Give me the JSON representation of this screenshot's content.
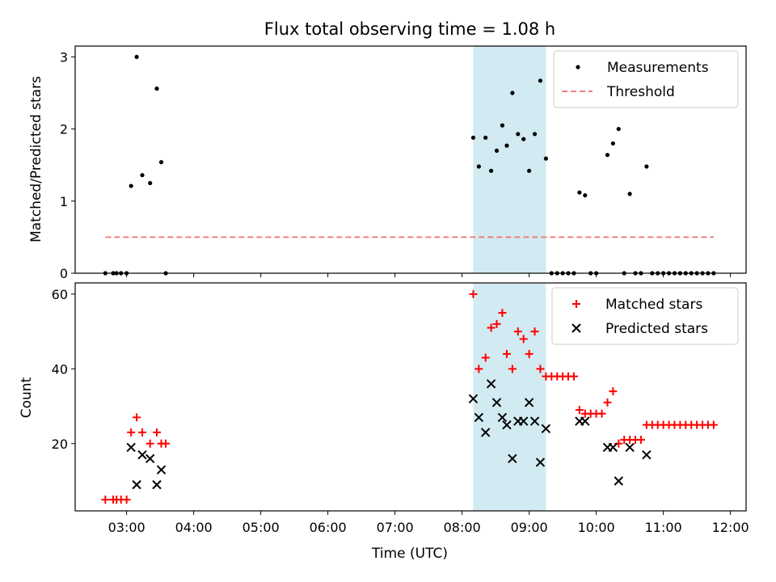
{
  "colors": {
    "band": "#add8e6",
    "threshold": "#f08080",
    "matched": "#ff0000",
    "predicted": "#000000",
    "measurement": "#000000"
  },
  "chart_data": [
    {
      "type": "scatter",
      "title": "Flux total observing time = 1.08 h",
      "xlabel": "",
      "ylabel": "Matched/Predicted stars",
      "xlim": [
        "02:14",
        "12:14"
      ],
      "ylim": [
        0,
        3.15
      ],
      "yticks": [
        "0",
        "1",
        "2",
        "3"
      ],
      "shaded_interval": [
        "08:10",
        "09:15"
      ],
      "legend_position": "top-right",
      "legend": [
        "Measurements",
        "Threshold"
      ],
      "series": [
        {
          "name": "Measurements",
          "points": [
            [
              "02:41",
              0
            ],
            [
              "02:48",
              0
            ],
            [
              "02:51",
              0
            ],
            [
              "02:55",
              0
            ],
            [
              "03:00",
              0
            ],
            [
              "03:04",
              1.21
            ],
            [
              "03:09",
              3.0
            ],
            [
              "03:14",
              1.36
            ],
            [
              "03:21",
              1.25
            ],
            [
              "03:27",
              2.56
            ],
            [
              "03:31",
              1.54
            ],
            [
              "03:35",
              0
            ],
            [
              "08:10",
              1.88
            ],
            [
              "08:15",
              1.48
            ],
            [
              "08:21",
              1.88
            ],
            [
              "08:26",
              1.42
            ],
            [
              "08:31",
              1.7
            ],
            [
              "08:36",
              2.05
            ],
            [
              "08:40",
              1.77
            ],
            [
              "08:45",
              2.5
            ],
            [
              "08:50",
              1.93
            ],
            [
              "08:55",
              1.86
            ],
            [
              "09:00",
              1.42
            ],
            [
              "09:05",
              1.93
            ],
            [
              "09:10",
              2.67
            ],
            [
              "09:15",
              1.59
            ],
            [
              "09:20",
              0
            ],
            [
              "09:25",
              0
            ],
            [
              "09:30",
              0
            ],
            [
              "09:35",
              0
            ],
            [
              "09:40",
              0
            ],
            [
              "09:45",
              1.12
            ],
            [
              "09:50",
              1.08
            ],
            [
              "09:55",
              0
            ],
            [
              "10:00",
              0
            ],
            [
              "10:10",
              1.64
            ],
            [
              "10:15",
              1.8
            ],
            [
              "10:20",
              2.0
            ],
            [
              "10:25",
              0
            ],
            [
              "10:30",
              1.1
            ],
            [
              "10:35",
              0
            ],
            [
              "10:40",
              0
            ],
            [
              "10:45",
              1.48
            ],
            [
              "10:50",
              0
            ],
            [
              "10:55",
              0
            ],
            [
              "11:00",
              0
            ],
            [
              "11:05",
              0
            ],
            [
              "11:10",
              0
            ],
            [
              "11:15",
              0
            ],
            [
              "11:20",
              0
            ],
            [
              "11:25",
              0
            ],
            [
              "11:30",
              0
            ],
            [
              "11:35",
              0
            ],
            [
              "11:40",
              0
            ],
            [
              "11:45",
              0
            ]
          ]
        },
        {
          "name": "Threshold",
          "style": "dashed",
          "points": [
            [
              "02:41",
              0.5
            ],
            [
              "11:45",
              0.5
            ]
          ]
        }
      ]
    },
    {
      "type": "scatter",
      "title": "",
      "xlabel": "Time (UTC)",
      "ylabel": "Count",
      "xlim": [
        "02:14",
        "12:14"
      ],
      "ylim": [
        2,
        63
      ],
      "yticks": [
        "20",
        "40",
        "60"
      ],
      "xticks": [
        "03:00",
        "04:00",
        "05:00",
        "06:00",
        "07:00",
        "08:00",
        "09:00",
        "10:00",
        "11:00",
        "12:00"
      ],
      "shaded_interval": [
        "08:10",
        "09:15"
      ],
      "legend_position": "top-right",
      "legend": [
        "Matched stars",
        "Predicted stars"
      ],
      "series": [
        {
          "name": "Matched stars",
          "marker": "plus",
          "points": [
            [
              "02:41",
              5
            ],
            [
              "02:48",
              5
            ],
            [
              "02:51",
              5
            ],
            [
              "02:55",
              5
            ],
            [
              "03:00",
              5
            ],
            [
              "03:04",
              23
            ],
            [
              "03:09",
              27
            ],
            [
              "03:14",
              23
            ],
            [
              "03:21",
              20
            ],
            [
              "03:27",
              23
            ],
            [
              "03:31",
              20
            ],
            [
              "03:35",
              20
            ],
            [
              "08:10",
              60
            ],
            [
              "08:15",
              40
            ],
            [
              "08:21",
              43
            ],
            [
              "08:26",
              51
            ],
            [
              "08:31",
              52
            ],
            [
              "08:36",
              55
            ],
            [
              "08:40",
              44
            ],
            [
              "08:45",
              40
            ],
            [
              "08:50",
              50
            ],
            [
              "08:55",
              48
            ],
            [
              "09:00",
              44
            ],
            [
              "09:05",
              50
            ],
            [
              "09:10",
              40
            ],
            [
              "09:15",
              38
            ],
            [
              "09:20",
              38
            ],
            [
              "09:25",
              38
            ],
            [
              "09:30",
              38
            ],
            [
              "09:35",
              38
            ],
            [
              "09:40",
              38
            ],
            [
              "09:45",
              29
            ],
            [
              "09:50",
              28
            ],
            [
              "09:55",
              28
            ],
            [
              "10:00",
              28
            ],
            [
              "10:05",
              28
            ],
            [
              "10:10",
              31
            ],
            [
              "10:15",
              34
            ],
            [
              "10:20",
              20
            ],
            [
              "10:25",
              21
            ],
            [
              "10:30",
              21
            ],
            [
              "10:35",
              21
            ],
            [
              "10:40",
              21
            ],
            [
              "10:45",
              25
            ],
            [
              "10:50",
              25
            ],
            [
              "10:55",
              25
            ],
            [
              "11:00",
              25
            ],
            [
              "11:05",
              25
            ],
            [
              "11:10",
              25
            ],
            [
              "11:15",
              25
            ],
            [
              "11:20",
              25
            ],
            [
              "11:25",
              25
            ],
            [
              "11:30",
              25
            ],
            [
              "11:35",
              25
            ],
            [
              "11:40",
              25
            ],
            [
              "11:45",
              25
            ]
          ]
        },
        {
          "name": "Predicted stars",
          "marker": "x",
          "points": [
            [
              "03:04",
              19
            ],
            [
              "03:09",
              9
            ],
            [
              "03:14",
              17
            ],
            [
              "03:21",
              16
            ],
            [
              "03:27",
              9
            ],
            [
              "03:31",
              13
            ],
            [
              "08:10",
              32
            ],
            [
              "08:15",
              27
            ],
            [
              "08:21",
              23
            ],
            [
              "08:26",
              36
            ],
            [
              "08:31",
              31
            ],
            [
              "08:36",
              27
            ],
            [
              "08:40",
              25
            ],
            [
              "08:45",
              16
            ],
            [
              "08:50",
              26
            ],
            [
              "08:55",
              26
            ],
            [
              "09:00",
              31
            ],
            [
              "09:05",
              26
            ],
            [
              "09:10",
              15
            ],
            [
              "09:15",
              24
            ],
            [
              "09:45",
              26
            ],
            [
              "09:50",
              26
            ],
            [
              "10:10",
              19
            ],
            [
              "10:15",
              19
            ],
            [
              "10:20",
              10
            ],
            [
              "10:30",
              19
            ],
            [
              "10:45",
              17
            ]
          ]
        }
      ]
    }
  ]
}
